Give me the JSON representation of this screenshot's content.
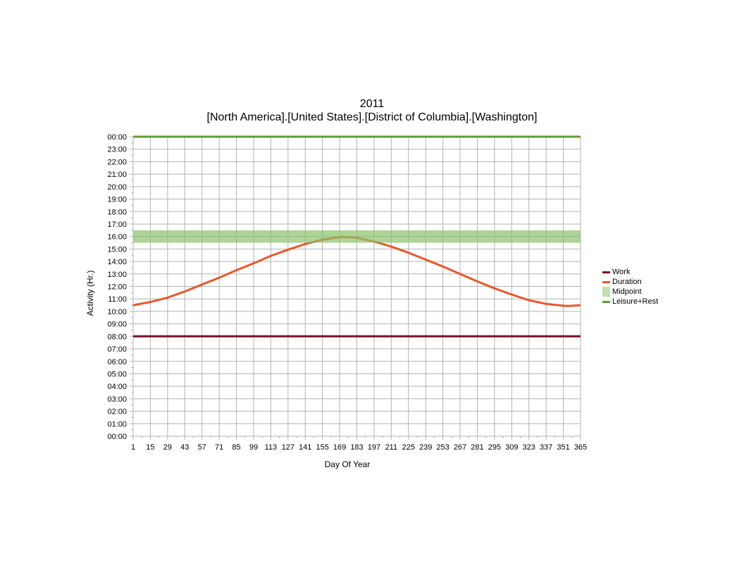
{
  "chart_data": {
    "type": "line",
    "title": "2011",
    "subtitle": "[North America].[United States].[District of Columbia].[Washington]",
    "xlabel": "Day Of Year",
    "ylabel": "Activity (Hr.)",
    "xlim": [
      1,
      365
    ],
    "ylim": [
      0,
      24
    ],
    "grid": true,
    "legend_position": "right",
    "x_ticks": [
      1,
      15,
      29,
      43,
      57,
      71,
      85,
      99,
      113,
      127,
      141,
      155,
      169,
      183,
      197,
      211,
      225,
      239,
      253,
      267,
      281,
      295,
      309,
      323,
      337,
      351,
      365
    ],
    "y_ticks": [
      "00:00",
      "01:00",
      "02:00",
      "03:00",
      "04:00",
      "05:00",
      "06:00",
      "07:00",
      "08:00",
      "09:00",
      "10:00",
      "11:00",
      "12:00",
      "13:00",
      "14:00",
      "15:00",
      "16:00",
      "17:00",
      "18:00",
      "19:00",
      "20:00",
      "21:00",
      "22:00",
      "23:00",
      "00:00"
    ],
    "series": [
      {
        "name": "Work",
        "color": "#7b0f2b",
        "x": [
          1,
          365
        ],
        "y": [
          8,
          8
        ]
      },
      {
        "name": "Duration",
        "color": "#e8572d",
        "x": [
          1,
          15,
          29,
          43,
          57,
          71,
          85,
          99,
          113,
          127,
          141,
          155,
          169,
          172,
          183,
          197,
          211,
          225,
          239,
          253,
          267,
          281,
          295,
          309,
          323,
          337,
          351,
          355,
          365
        ],
        "y": [
          10.5,
          10.75,
          11.1,
          11.6,
          12.15,
          12.7,
          13.3,
          13.85,
          14.45,
          14.95,
          15.4,
          15.75,
          15.95,
          15.97,
          15.9,
          15.6,
          15.2,
          14.7,
          14.15,
          13.6,
          13.0,
          12.4,
          11.85,
          11.35,
          10.9,
          10.6,
          10.45,
          10.43,
          10.5
        ]
      },
      {
        "name": "Midpoint",
        "color": "#8dc26b",
        "type": "band",
        "x": [
          1,
          365
        ],
        "low": 15.5,
        "high": 16.5
      },
      {
        "name": "Leisure+Rest",
        "color": "#5e9e2e",
        "x": [
          1,
          365
        ],
        "y": [
          24,
          24
        ]
      }
    ]
  }
}
